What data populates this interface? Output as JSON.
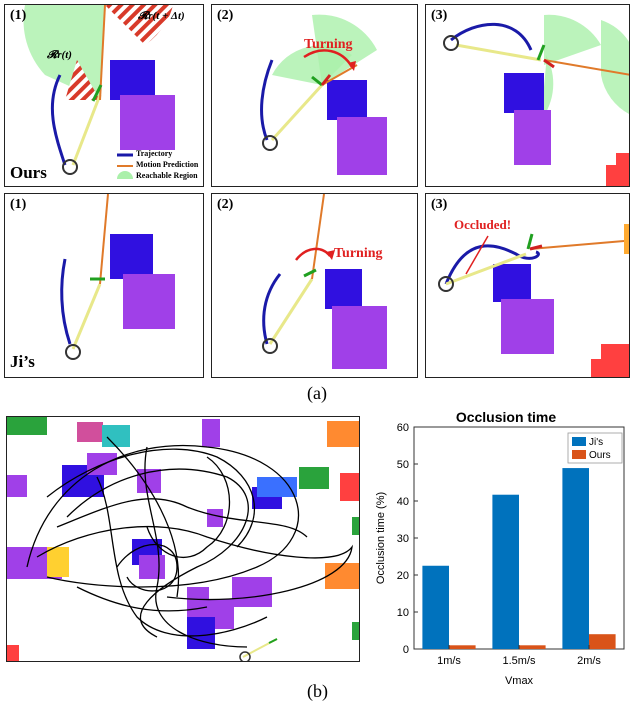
{
  "figure": {
    "caption_a": "(a)",
    "caption_b": "(b)"
  },
  "row_ours": {
    "label": "Ours",
    "panels": [
      {
        "label": "(1)"
      },
      {
        "label": "(2)",
        "annotation": "Turning"
      },
      {
        "label": "(3)"
      }
    ],
    "formula_top": "𝓡r(t + Δt)",
    "formula_left": "𝓡r(t)",
    "legend": [
      "Trajectory",
      "Motion Prediction",
      "Reachable Region"
    ]
  },
  "row_jis": {
    "label": "Ji’s",
    "panels": [
      {
        "label": "(1)"
      },
      {
        "label": "(2)",
        "annotation": "Turning"
      },
      {
        "label": "(3)",
        "annotation": "Occluded!"
      }
    ]
  },
  "colors": {
    "trajectory": "#1a1aa8",
    "prediction": "#e07a2a",
    "reachable": "#90ee90",
    "ours_bar": "#d95319",
    "jis_bar": "#0072bd",
    "alert": "#e02020"
  },
  "chart_data": {
    "type": "bar",
    "title": "Occlusion time",
    "xlabel": "Vmax",
    "ylabel": "Occlusion time (%)",
    "categories": [
      "1m/s",
      "1.5m/s",
      "2m/s"
    ],
    "ylim": [
      0,
      60
    ],
    "yticks": [
      "0",
      "10",
      "20",
      "30",
      "40",
      "50",
      "60"
    ],
    "series": [
      {
        "name": "Ji's",
        "values": [
          22.5,
          41.7,
          48.9
        ]
      },
      {
        "name": "Ours",
        "values": [
          1,
          1,
          4
        ]
      }
    ],
    "legend_position": "top-right"
  }
}
